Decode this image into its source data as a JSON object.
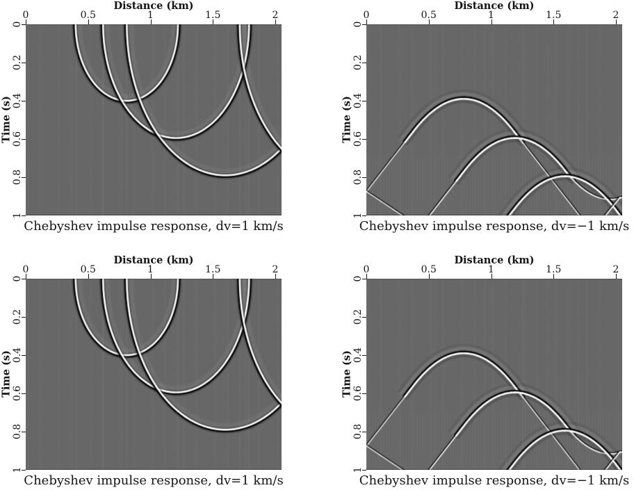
{
  "figure": {
    "background": "#ffffff",
    "plot_background_gray": "#676767",
    "text_color": "#141414",
    "wavelet_white": "#fcfcfc",
    "wavelet_black": "#050505"
  },
  "axes": {
    "x_title": "Distance (km)",
    "y_title": "Time (s)",
    "x_ticks": [
      "0",
      "0.5",
      "1",
      "1.5",
      "2"
    ],
    "x_tick_values": [
      0,
      0.5,
      1,
      1.5,
      2
    ],
    "y_ticks": [
      "0",
      "0.2",
      "0.4",
      "0.6",
      "0.8",
      "1"
    ],
    "y_tick_values": [
      0,
      0.2,
      0.4,
      0.6,
      0.8,
      1
    ],
    "x_range": [
      0,
      2.05
    ],
    "y_range": [
      0,
      1
    ]
  },
  "panels": [
    {
      "id": "top-left",
      "caption": "Chebyshev impulse response, dv=1 km/s"
    },
    {
      "id": "top-right",
      "caption": "Chebyshev impulse response, dv=−1 km/s"
    },
    {
      "id": "bottom-left",
      "caption": "Chebyshev impulse response, dv=1 km/s"
    },
    {
      "id": "bottom-right",
      "caption": "Chebyshev impulse response, dv=−1 km/s"
    }
  ],
  "chart_data": [
    {
      "type": "heatmap",
      "title": "Chebyshev impulse response, dv=1 km/s",
      "xlabel": "Distance (km)",
      "ylabel": "Time (s)",
      "x_range": [
        0,
        2.05
      ],
      "t_range": [
        0,
        1
      ],
      "x_ticks": [
        0,
        0.5,
        1,
        1.5,
        2
      ],
      "t_ticks": [
        0,
        0.2,
        0.4,
        0.6,
        0.8,
        1
      ],
      "impulse_points_km_s": [
        [
          0.8,
          0.4
        ],
        [
          1.2,
          0.6
        ],
        [
          1.6,
          0.8
        ]
      ],
      "events": [
        {
          "kind": "ellipse",
          "cx": 0.81,
          "rx": 0.41,
          "tmax": 0.4
        },
        {
          "kind": "ellipse",
          "cx": 1.205,
          "rx": 0.585,
          "tmax": 0.595
        },
        {
          "kind": "ellipse",
          "cx": 1.6,
          "rx": 0.79,
          "tmax": 0.79
        },
        {
          "kind": "ellipse",
          "cx": 2.513,
          "rx": 0.798,
          "tmax": 0.798
        }
      ],
      "stripes": [
        0.405,
        0.62,
        0.81,
        1.22,
        1.715,
        1.79
      ],
      "texture": "plain"
    },
    {
      "type": "heatmap",
      "title": "Chebyshev impulse response, dv=−1 km/s",
      "xlabel": "Distance (km)",
      "ylabel": "Time (s)",
      "x_range": [
        0,
        2.05
      ],
      "t_range": [
        0,
        1
      ],
      "x_ticks": [
        0,
        0.5,
        1,
        1.5,
        2
      ],
      "t_ticks": [
        0,
        0.2,
        0.4,
        0.6,
        0.8,
        1
      ],
      "impulse_points_km_s": [
        [
          0.8,
          0.4
        ],
        [
          1.2,
          0.6
        ],
        [
          1.6,
          0.8
        ]
      ],
      "arch_k": 1.05,
      "arch_m": 0.4,
      "arch_slope": 0.84,
      "events": [
        {
          "kind": "arch",
          "x0": 0.78,
          "t0": 0.39,
          "xmin": 0.0,
          "xmax": 1.78,
          "ltw": 1.25,
          "rtw": 1.25
        },
        {
          "kind": "arch",
          "x0": 1.19,
          "t0": 0.595,
          "xmin": 0.37,
          "xmax": 2.052,
          "q": 1.15,
          "ltw": 1.6,
          "rtw": 1.8
        },
        {
          "kind": "arch",
          "x0": 1.59,
          "t0": 0.795,
          "xmin": 1.12,
          "xmax": 2.07,
          "core_only": true
        }
      ],
      "reflections": [
        {
          "pts": [
            [
              0,
              0.875
            ],
            [
              0.31,
              1.01
            ]
          ],
          "lw": 1.25
        },
        {
          "pts": [
            [
              2.034,
              0.905
            ],
            [
              1.87,
              1.04
            ]
          ],
          "lw": 1.8
        }
      ],
      "stripes": [
        0.55,
        0.95,
        1.25,
        1.45,
        1.7
      ],
      "texture": "checker"
    },
    {
      "type": "heatmap",
      "title": "Chebyshev impulse response, dv=1 km/s",
      "xlabel": "Distance (km)",
      "ylabel": "Time (s)",
      "x_range": [
        0,
        2.05
      ],
      "t_range": [
        0,
        1
      ],
      "x_ticks": [
        0,
        0.5,
        1,
        1.5,
        2
      ],
      "t_ticks": [
        0,
        0.2,
        0.4,
        0.6,
        0.8,
        1
      ],
      "impulse_points_km_s": [
        [
          0.8,
          0.4
        ],
        [
          1.2,
          0.6
        ],
        [
          1.6,
          0.8
        ]
      ],
      "events": [
        {
          "kind": "ellipse",
          "cx": 0.81,
          "rx": 0.41,
          "tmax": 0.4
        },
        {
          "kind": "ellipse",
          "cx": 1.205,
          "rx": 0.585,
          "tmax": 0.595
        },
        {
          "kind": "ellipse",
          "cx": 1.6,
          "rx": 0.79,
          "tmax": 0.79
        },
        {
          "kind": "ellipse",
          "cx": 2.513,
          "rx": 0.798,
          "tmax": 0.798
        }
      ],
      "stripes": [
        0.405,
        0.62,
        0.81,
        1.22,
        1.715,
        1.79
      ],
      "texture": "plain"
    },
    {
      "type": "heatmap",
      "title": "Chebyshev impulse response, dv=−1 km/s",
      "xlabel": "Distance (km)",
      "ylabel": "Time (s)",
      "x_range": [
        0,
        2.05
      ],
      "t_range": [
        0,
        1
      ],
      "x_ticks": [
        0,
        0.5,
        1,
        1.5,
        2
      ],
      "t_ticks": [
        0,
        0.2,
        0.4,
        0.6,
        0.8,
        1
      ],
      "impulse_points_km_s": [
        [
          0.8,
          0.4
        ],
        [
          1.2,
          0.6
        ],
        [
          1.6,
          0.8
        ]
      ],
      "arch_k": 1.05,
      "arch_m": 0.4,
      "arch_slope": 0.84,
      "events": [
        {
          "kind": "arch",
          "x0": 0.78,
          "t0": 0.39,
          "xmin": 0.0,
          "xmax": 1.78,
          "ltw": 1.25,
          "rtw": 1.25
        },
        {
          "kind": "arch",
          "x0": 1.19,
          "t0": 0.595,
          "xmin": 0.37,
          "xmax": 2.052,
          "q": 1.15,
          "ltw": 1.6,
          "rtw": 1.8
        },
        {
          "kind": "arch",
          "x0": 1.59,
          "t0": 0.795,
          "xmin": 1.12,
          "xmax": 2.07,
          "core_only": true
        }
      ],
      "reflections": [
        {
          "pts": [
            [
              0,
              0.875
            ],
            [
              0.31,
              1.01
            ]
          ],
          "lw": 1.25
        },
        {
          "pts": [
            [
              2.034,
              0.905
            ],
            [
              1.87,
              1.04
            ]
          ],
          "lw": 1.8
        }
      ],
      "stripes": [
        0.55,
        0.95,
        1.25,
        1.45,
        1.7
      ],
      "texture": "checker"
    }
  ]
}
